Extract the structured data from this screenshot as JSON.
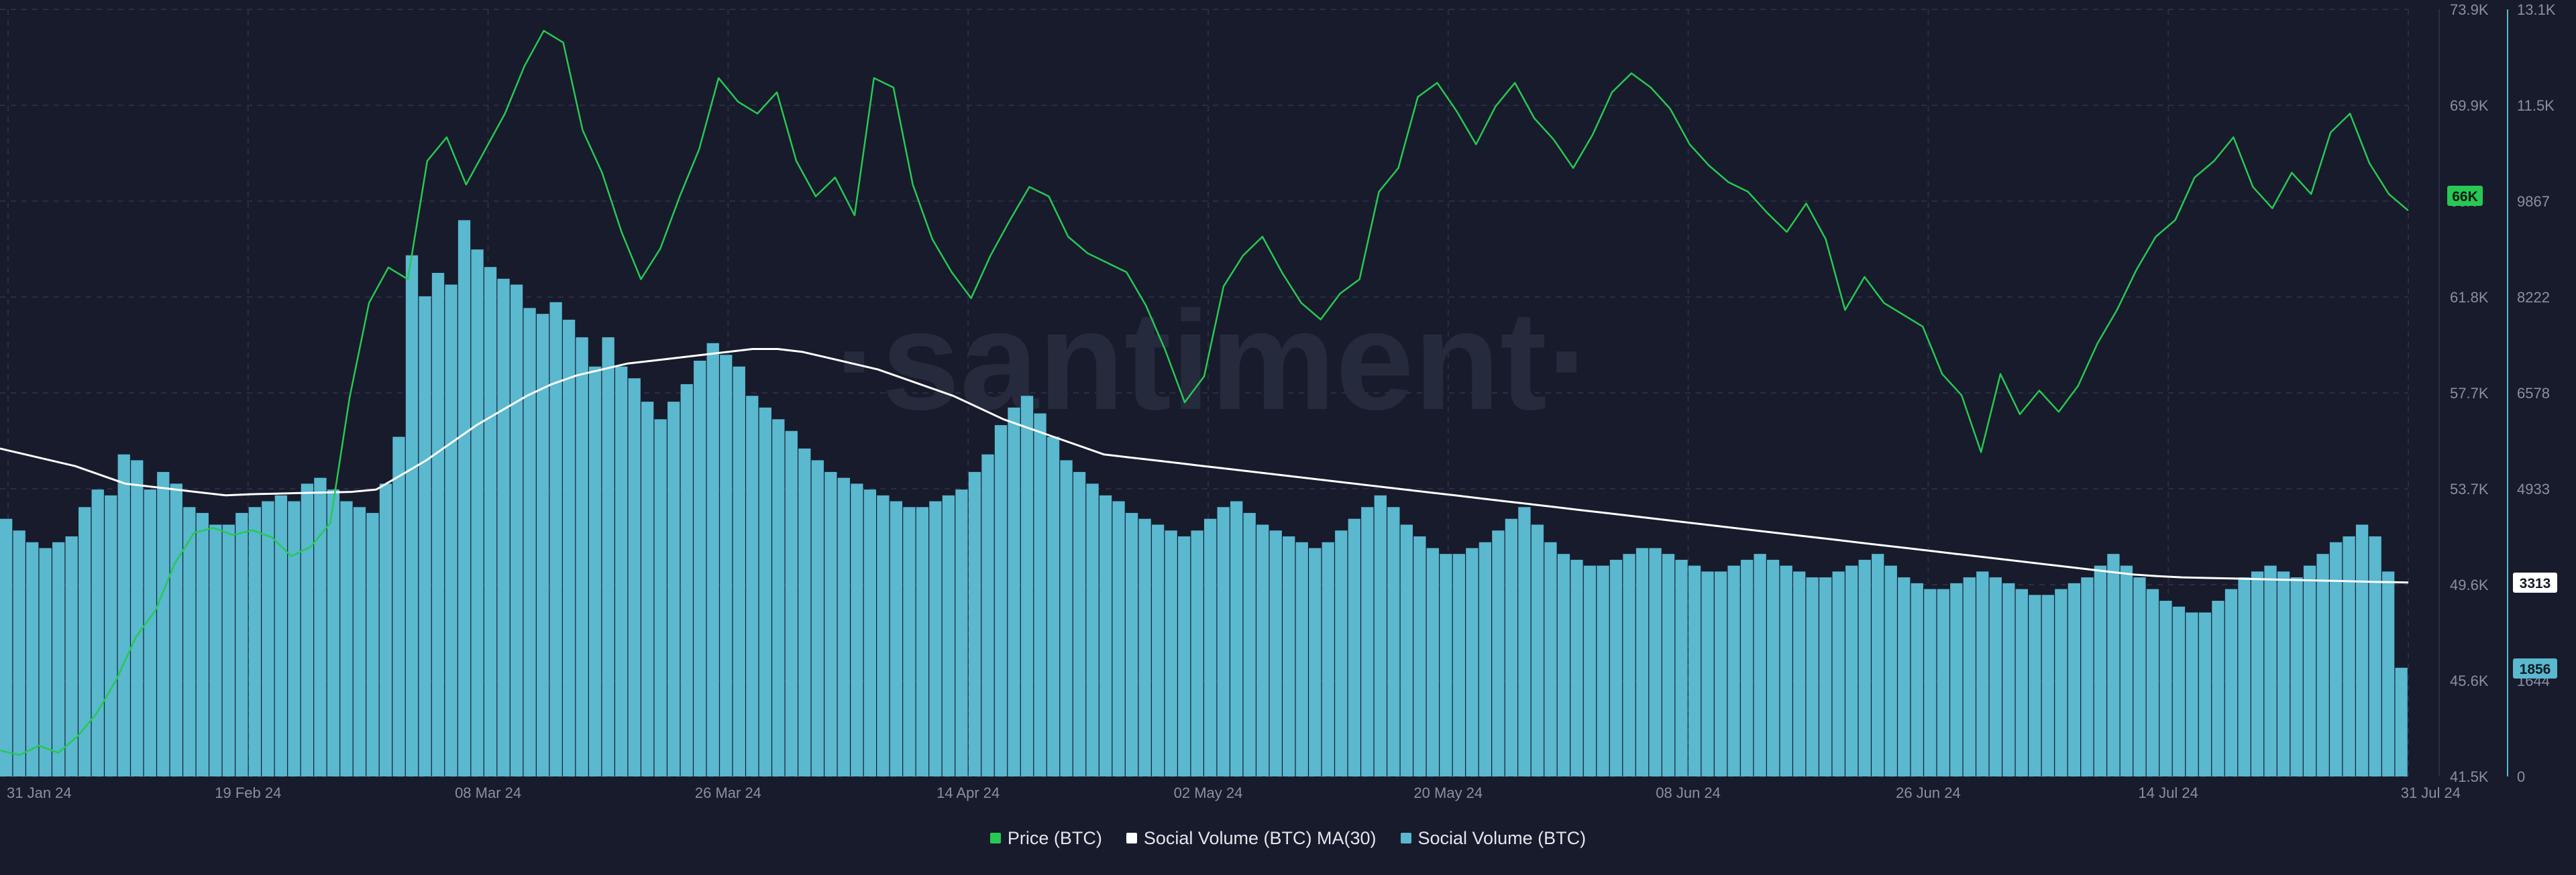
{
  "watermark": "·santiment·",
  "colors": {
    "background": "#181b2b",
    "grid": "#2a2e44",
    "price": "#26c953",
    "ma": "#ffffff",
    "volume": "#5ab8cf",
    "axis_text": "#8a8fa3"
  },
  "legend": {
    "price": "Price (BTC)",
    "ma": "Social Volume (BTC) MA(30)",
    "volume": "Social Volume (BTC)"
  },
  "badges": {
    "price": "66K",
    "ma": "3313",
    "volume": "1856"
  },
  "chart_data": {
    "type": "bar",
    "title": "",
    "x_ticks": [
      "31 Jan 24",
      "19 Feb 24",
      "08 Mar 24",
      "26 Mar 24",
      "14 Apr 24",
      "02 May 24",
      "20 May 24",
      "08 Jun 24",
      "26 Jun 24",
      "14 Jul 24",
      "31 Jul 24"
    ],
    "x_range": [
      "2024-01-31",
      "2024-07-31"
    ],
    "price_axis": {
      "ticks": [
        "73.9K",
        "69.9K",
        "66K",
        "61.8K",
        "57.7K",
        "53.7K",
        "49.6K",
        "45.6K",
        "41.5K"
      ],
      "range": [
        41500,
        73900
      ]
    },
    "volume_axis": {
      "ticks": [
        "13.1K",
        "11.5K",
        "9867",
        "8222",
        "6578",
        "4933",
        "3313",
        "1644",
        "0"
      ],
      "range": [
        0,
        13100
      ]
    },
    "grid": true,
    "legend_position": "bottom-center",
    "series": [
      {
        "name": "Social Volume (BTC)",
        "type": "bar",
        "axis": "right",
        "values": [
          4400,
          4200,
          4000,
          3900,
          4000,
          4100,
          4600,
          4900,
          4800,
          5500,
          5400,
          4900,
          5200,
          5000,
          4600,
          4500,
          4300,
          4300,
          4500,
          4600,
          4700,
          4800,
          4700,
          5000,
          5100,
          4900,
          4700,
          4600,
          4500,
          5000,
          5800,
          8900,
          8200,
          8600,
          8400,
          9500,
          9000,
          8700,
          8500,
          8400,
          8000,
          7900,
          8100,
          7800,
          7500,
          7000,
          7500,
          7000,
          6800,
          6400,
          6100,
          6400,
          6700,
          7100,
          7400,
          7200,
          7000,
          6500,
          6300,
          6100,
          5900,
          5600,
          5400,
          5200,
          5100,
          5000,
          4900,
          4800,
          4700,
          4600,
          4600,
          4700,
          4800,
          4900,
          5200,
          5500,
          6000,
          6300,
          6500,
          6200,
          5800,
          5400,
          5200,
          5000,
          4800,
          4700,
          4500,
          4400,
          4300,
          4200,
          4100,
          4200,
          4400,
          4600,
          4700,
          4500,
          4300,
          4200,
          4100,
          4000,
          3900,
          4000,
          4200,
          4400,
          4600,
          4800,
          4600,
          4300,
          4100,
          3900,
          3800,
          3800,
          3900,
          4000,
          4200,
          4400,
          4600,
          4300,
          4000,
          3800,
          3700,
          3600,
          3600,
          3700,
          3800,
          3900,
          3900,
          3800,
          3700,
          3600,
          3500,
          3500,
          3600,
          3700,
          3800,
          3700,
          3600,
          3500,
          3400,
          3400,
          3500,
          3600,
          3700,
          3800,
          3600,
          3400,
          3300,
          3200,
          3200,
          3300,
          3400,
          3500,
          3400,
          3300,
          3200,
          3100,
          3100,
          3200,
          3300,
          3400,
          3600,
          3800,
          3600,
          3400,
          3200,
          3000,
          2900,
          2800,
          2800,
          3000,
          3200,
          3400,
          3500,
          3600,
          3500,
          3400,
          3600,
          3800,
          4000,
          4100,
          4300,
          4100,
          3500,
          1856
        ]
      },
      {
        "name": "Social Volume (BTC) MA(30)",
        "type": "line",
        "axis": "right",
        "values": [
          5600,
          5500,
          5400,
          5300,
          5150,
          5000,
          4950,
          4900,
          4850,
          4800,
          4820,
          4830,
          4840,
          4850,
          4860,
          4900,
          5150,
          5400,
          5700,
          6000,
          6250,
          6500,
          6700,
          6850,
          6950,
          7050,
          7100,
          7150,
          7200,
          7250,
          7300,
          7300,
          7250,
          7150,
          7050,
          6950,
          6800,
          6650,
          6500,
          6300,
          6100,
          5950,
          5800,
          5650,
          5500,
          5450,
          5400,
          5350,
          5300,
          5250,
          5200,
          5150,
          5100,
          5050,
          5000,
          4950,
          4900,
          4850,
          4800,
          4750,
          4700,
          4650,
          4600,
          4550,
          4500,
          4450,
          4400,
          4350,
          4300,
          4250,
          4200,
          4150,
          4100,
          4050,
          4000,
          3950,
          3900,
          3850,
          3800,
          3750,
          3700,
          3650,
          3600,
          3550,
          3500,
          3450,
          3420,
          3400,
          3390,
          3380,
          3370,
          3360,
          3350,
          3340,
          3330,
          3320,
          3313
        ]
      },
      {
        "name": "Price (BTC)",
        "type": "line",
        "axis": "left",
        "values": [
          42600,
          42400,
          42800,
          42500,
          43200,
          44200,
          45600,
          47400,
          48500,
          50500,
          51800,
          52000,
          51700,
          51900,
          51600,
          50800,
          51200,
          52200,
          57500,
          61500,
          63000,
          62500,
          67500,
          68500,
          66500,
          68000,
          69500,
          71500,
          73000,
          72500,
          68800,
          67000,
          64500,
          62500,
          63800,
          66000,
          68000,
          71000,
          70000,
          69500,
          70400,
          67500,
          66000,
          66800,
          65200,
          71000,
          70600,
          66500,
          64200,
          62800,
          61700,
          63500,
          65000,
          66400,
          66000,
          64300,
          63600,
          63200,
          62800,
          61400,
          59500,
          57300,
          58400,
          62200,
          63500,
          64300,
          62800,
          61500,
          60800,
          61900,
          62500,
          66200,
          67200,
          70200,
          70800,
          69600,
          68200,
          69800,
          70800,
          69300,
          68400,
          67200,
          68600,
          70400,
          71200,
          70600,
          69700,
          68200,
          67300,
          66600,
          66200,
          65300,
          64500,
          65700,
          64200,
          61200,
          62600,
          61500,
          61000,
          60500,
          58500,
          57600,
          55200,
          58500,
          56800,
          57800,
          56900,
          58000,
          59800,
          61200,
          62900,
          64300,
          65000,
          66800,
          67500,
          68500,
          66400,
          65500,
          67000,
          66100,
          68700,
          69500,
          67400,
          66100,
          65400
        ]
      }
    ]
  }
}
